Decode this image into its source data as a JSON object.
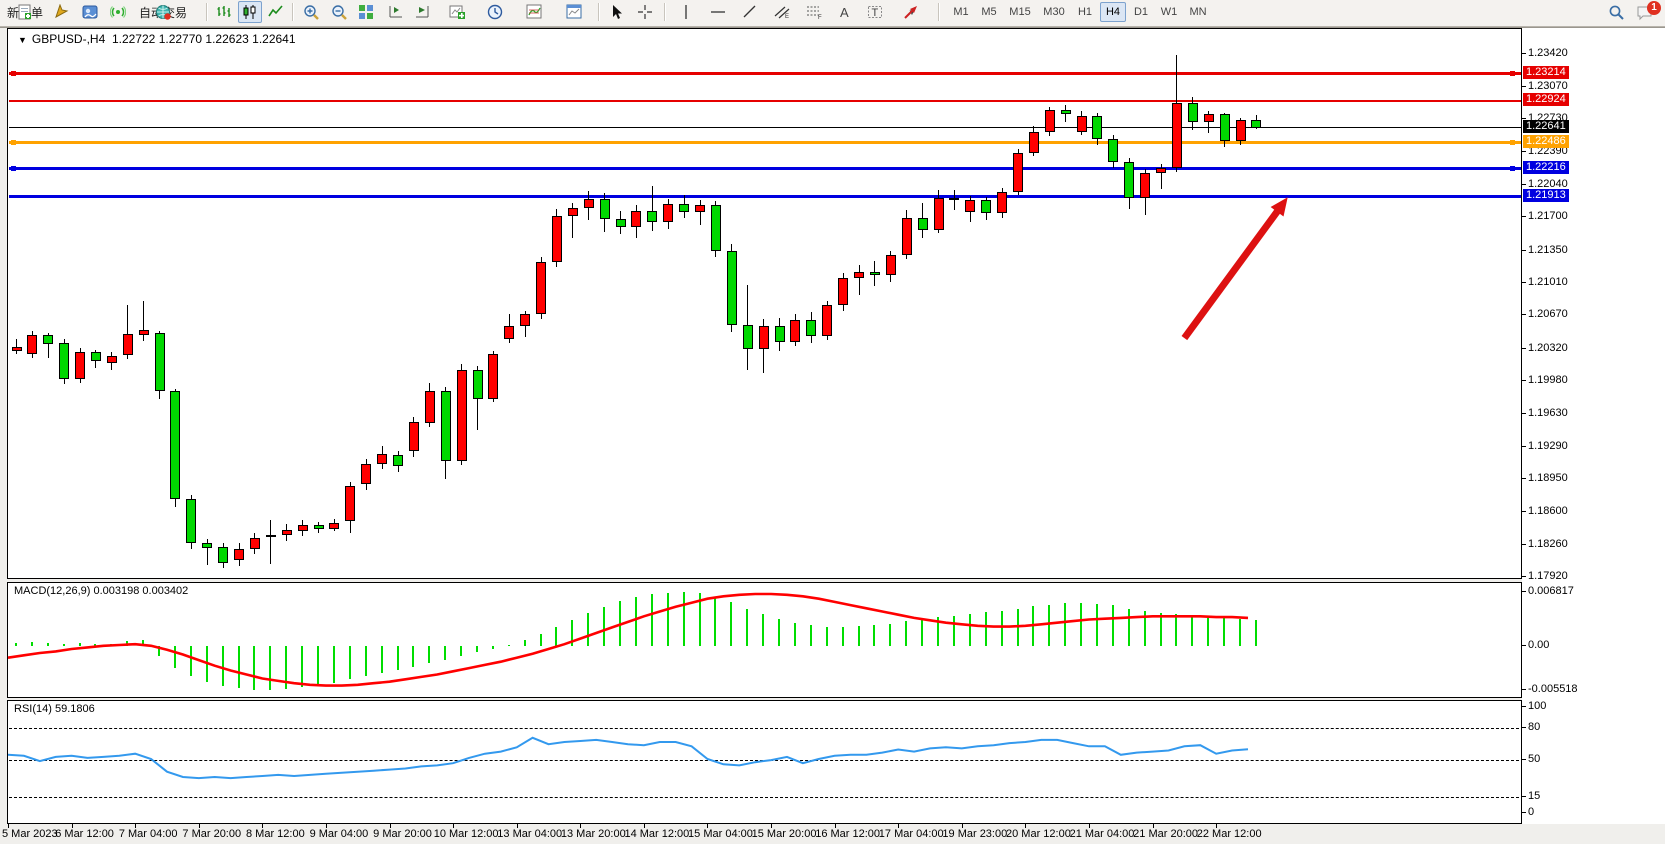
{
  "toolbar": {
    "new_order_label": "新订单",
    "auto_trading_label": "自动交易",
    "timeframes": [
      "M1",
      "M5",
      "M15",
      "M30",
      "H1",
      "H4",
      "D1",
      "W1",
      "MN"
    ],
    "active_timeframe": "H4",
    "notification_count": "1"
  },
  "chart_title": {
    "symbol_period": "GBPUSD-,H4",
    "open": "1.22722",
    "high": "1.22770",
    "low": "1.22623",
    "close": "1.22641"
  },
  "macd_panel": {
    "label": "MACD(12,26,9) 0.003198 0.003402",
    "axis_ticks": [
      {
        "value": 0.006817,
        "text": "0.006817"
      },
      {
        "value": 0.0,
        "text": "0.00"
      },
      {
        "value": -0.005518,
        "text": "-0.005518"
      }
    ]
  },
  "rsi_panel": {
    "label": "RSI(14) 59.1806",
    "axis_ticks": [
      {
        "value": 100,
        "text": "100"
      },
      {
        "value": 80,
        "text": "80"
      },
      {
        "value": 50,
        "text": "50"
      },
      {
        "value": 15,
        "text": "15"
      },
      {
        "value": 0,
        "text": "0"
      }
    ],
    "dashed_levels": [
      80,
      50,
      15
    ]
  },
  "chart_data": {
    "type": "candlestick",
    "symbol": "GBPUSD-",
    "period": "H4",
    "price_axis_ticks": [
      "1.23420",
      "1.23070",
      "1.22730",
      "1.22390",
      "1.22040",
      "1.21700",
      "1.21350",
      "1.21010",
      "1.20670",
      "1.20320",
      "1.19980",
      "1.19630",
      "1.19290",
      "1.18950",
      "1.18600",
      "1.18260",
      "1.17920"
    ],
    "ylim": [
      1.179,
      1.2352
    ],
    "grid": false,
    "up_color": "#ff0000",
    "down_color": "#00d800",
    "time_labels": [
      {
        "index": 0,
        "text": "5 Mar 2023"
      },
      {
        "index": 4,
        "text": "6 Mar 12:00"
      },
      {
        "index": 8,
        "text": "7 Mar 04:00"
      },
      {
        "index": 12,
        "text": "7 Mar 20:00"
      },
      {
        "index": 16,
        "text": "8 Mar 12:00"
      },
      {
        "index": 20,
        "text": "9 Mar 04:00"
      },
      {
        "index": 24,
        "text": "9 Mar 20:00"
      },
      {
        "index": 28,
        "text": "10 Mar 12:00"
      },
      {
        "index": 32,
        "text": "13 Mar 04:00"
      },
      {
        "index": 36,
        "text": "13 Mar 20:00"
      },
      {
        "index": 40,
        "text": "14 Mar 12:00"
      },
      {
        "index": 44,
        "text": "15 Mar 04:00"
      },
      {
        "index": 48,
        "text": "15 Mar 20:00"
      },
      {
        "index": 52,
        "text": "16 Mar 12:00"
      },
      {
        "index": 56,
        "text": "17 Mar 04:00"
      },
      {
        "index": 60,
        "text": "19 Mar 23:00"
      },
      {
        "index": 64,
        "text": "20 Mar 12:00"
      },
      {
        "index": 68,
        "text": "21 Mar 04:00"
      },
      {
        "index": 72,
        "text": "21 Mar 20:00"
      },
      {
        "index": 76,
        "text": "22 Mar 12:00"
      }
    ],
    "candles_ohlc": [
      [
        1.203,
        1.2042,
        1.2026,
        1.2034
      ],
      [
        1.2026,
        1.205,
        1.2022,
        1.2046
      ],
      [
        1.2046,
        1.2048,
        1.2022,
        1.2037
      ],
      [
        1.2038,
        1.2042,
        1.1995,
        1.2
      ],
      [
        1.2,
        1.2033,
        1.1996,
        1.2028
      ],
      [
        1.2028,
        1.2031,
        1.2012,
        1.2019
      ],
      [
        1.2017,
        1.2028,
        1.201,
        1.2024
      ],
      [
        1.2025,
        1.2078,
        1.2021,
        1.2047
      ],
      [
        1.2046,
        1.2082,
        1.204,
        1.2052
      ],
      [
        1.2048,
        1.2051,
        1.1979,
        1.1988
      ],
      [
        1.1988,
        1.199,
        1.1866,
        1.1874
      ],
      [
        1.1874,
        1.1878,
        1.1821,
        1.1828
      ],
      [
        1.1828,
        1.1832,
        1.1805,
        1.1823
      ],
      [
        1.1824,
        1.1828,
        1.1802,
        1.1807
      ],
      [
        1.181,
        1.1828,
        1.1804,
        1.1822
      ],
      [
        1.1821,
        1.1838,
        1.1816,
        1.1833
      ],
      [
        1.1834,
        1.1852,
        1.1806,
        1.1836
      ],
      [
        1.1836,
        1.1848,
        1.183,
        1.1841
      ],
      [
        1.184,
        1.1852,
        1.1835,
        1.1847
      ],
      [
        1.1847,
        1.185,
        1.1838,
        1.1843
      ],
      [
        1.1843,
        1.1853,
        1.184,
        1.1849
      ],
      [
        1.1851,
        1.1892,
        1.1838,
        1.1888
      ],
      [
        1.189,
        1.1916,
        1.1884,
        1.1911
      ],
      [
        1.1911,
        1.193,
        1.1906,
        1.1921
      ],
      [
        1.192,
        1.1924,
        1.1902,
        1.1909
      ],
      [
        1.1924,
        1.196,
        1.1918,
        1.1955
      ],
      [
        1.1954,
        1.1996,
        1.195,
        1.1988
      ],
      [
        1.1988,
        1.1992,
        1.1895,
        1.1914
      ],
      [
        1.1914,
        1.2016,
        1.191,
        1.201
      ],
      [
        1.201,
        1.2014,
        1.1947,
        1.1979
      ],
      [
        1.1979,
        1.203,
        1.1976,
        1.2026
      ],
      [
        1.2042,
        1.2068,
        1.2038,
        1.2056
      ],
      [
        1.2056,
        1.2072,
        1.2044,
        1.2068
      ],
      [
        1.2068,
        1.2128,
        1.2063,
        1.2123
      ],
      [
        1.2123,
        1.2179,
        1.2118,
        1.2171
      ],
      [
        1.2171,
        1.2185,
        1.2148,
        1.218
      ],
      [
        1.218,
        1.2198,
        1.2167,
        1.2189
      ],
      [
        1.2189,
        1.2195,
        1.2155,
        1.2168
      ],
      [
        1.2168,
        1.2177,
        1.2152,
        1.216
      ],
      [
        1.216,
        1.2183,
        1.2148,
        1.2177
      ],
      [
        1.2177,
        1.2203,
        1.2156,
        1.2165
      ],
      [
        1.2165,
        1.2189,
        1.2158,
        1.2184
      ],
      [
        1.2184,
        1.2193,
        1.2169,
        1.2175
      ],
      [
        1.2175,
        1.2188,
        1.2162,
        1.2183
      ],
      [
        1.2183,
        1.2187,
        1.2128,
        1.2135
      ],
      [
        1.2135,
        1.2142,
        1.2049,
        1.2057
      ],
      [
        1.2057,
        1.2099,
        1.201,
        1.2032
      ],
      [
        1.2032,
        1.2063,
        1.2006,
        1.2056
      ],
      [
        1.2056,
        1.2064,
        1.2029,
        1.2039
      ],
      [
        1.2039,
        1.2068,
        1.2035,
        1.2062
      ],
      [
        1.2062,
        1.207,
        1.2038,
        1.2045
      ],
      [
        1.2045,
        1.2082,
        1.2041,
        1.2078
      ],
      [
        1.2078,
        1.2111,
        1.2072,
        1.2106
      ],
      [
        1.2106,
        1.212,
        1.2088,
        1.2113
      ],
      [
        1.2113,
        1.2124,
        1.2098,
        1.2109
      ],
      [
        1.2109,
        1.2135,
        1.2102,
        1.213
      ],
      [
        1.213,
        1.2178,
        1.2126,
        1.2169
      ],
      [
        1.2169,
        1.2185,
        1.2148,
        1.2157
      ],
      [
        1.2157,
        1.2199,
        1.2153,
        1.219
      ],
      [
        1.219,
        1.2199,
        1.2178,
        1.2188
      ],
      [
        1.2175,
        1.2192,
        1.2165,
        1.2188
      ],
      [
        1.2188,
        1.2191,
        1.2167,
        1.2174
      ],
      [
        1.2174,
        1.2201,
        1.2169,
        1.2197
      ],
      [
        1.2197,
        1.2242,
        1.2193,
        1.2238
      ],
      [
        1.2238,
        1.2266,
        1.2234,
        1.226
      ],
      [
        1.226,
        1.2286,
        1.2255,
        1.2283
      ],
      [
        1.2283,
        1.2288,
        1.227,
        1.2278
      ],
      [
        1.226,
        1.2282,
        1.2256,
        1.2276
      ],
      [
        1.2276,
        1.228,
        1.2246,
        1.2252
      ],
      [
        1.2252,
        1.2256,
        1.2222,
        1.2228
      ],
      [
        1.2228,
        1.2232,
        1.2179,
        1.219
      ],
      [
        1.219,
        1.2221,
        1.2172,
        1.2217
      ],
      [
        1.2217,
        1.2226,
        1.22,
        1.2222
      ],
      [
        1.2222,
        1.234,
        1.2218,
        1.229
      ],
      [
        1.229,
        1.2296,
        1.2262,
        1.227
      ],
      [
        1.227,
        1.2282,
        1.2258,
        1.2278
      ],
      [
        1.2278,
        1.228,
        1.2244,
        1.225
      ],
      [
        1.225,
        1.2274,
        1.2246,
        1.22722
      ],
      [
        1.22722,
        1.2277,
        1.22623,
        1.22641
      ]
    ],
    "macd": {
      "histogram": [
        0.0004,
        0.0005,
        0.0004,
        0.0002,
        0.0004,
        0.0003,
        0.0003,
        0.0006,
        0.0007,
        -0.0012,
        -0.0028,
        -0.0038,
        -0.0045,
        -0.005,
        -0.0053,
        -0.0055,
        -0.0055,
        -0.0054,
        -0.0052,
        -0.0049,
        -0.0046,
        -0.0042,
        -0.0038,
        -0.0034,
        -0.003,
        -0.0026,
        -0.0021,
        -0.0017,
        -0.0012,
        -0.0008,
        -0.0004,
        0.0001,
        0.0007,
        0.0015,
        0.0024,
        0.0033,
        0.0041,
        0.0049,
        0.0056,
        0.0061,
        0.0065,
        0.0067,
        0.0068,
        0.0066,
        0.0062,
        0.0055,
        0.0047,
        0.004,
        0.0034,
        0.0029,
        0.0026,
        0.0024,
        0.0024,
        0.0025,
        0.0026,
        0.0028,
        0.0031,
        0.0033,
        0.0036,
        0.0038,
        0.004,
        0.0042,
        0.0044,
        0.0047,
        0.005,
        0.0052,
        0.0054,
        0.0054,
        0.0053,
        0.0051,
        0.0047,
        0.0044,
        0.0041,
        0.004,
        0.0039,
        0.0038,
        0.0036,
        0.0034,
        0.0032
      ],
      "signal": [
        -0.0016,
        -0.0013,
        -0.001,
        -0.0008,
        -0.0005,
        -0.0003,
        -0.0001,
        0.0,
        0.0001,
        -0.0001,
        -0.0006,
        -0.0012,
        -0.0019,
        -0.0026,
        -0.0032,
        -0.0037,
        -0.0042,
        -0.0045,
        -0.0048,
        -0.005,
        -0.0051,
        -0.0051,
        -0.005,
        -0.0048,
        -0.0046,
        -0.0043,
        -0.004,
        -0.0037,
        -0.0033,
        -0.0029,
        -0.0025,
        -0.0021,
        -0.0016,
        -0.0011,
        -0.0005,
        0.0001,
        0.0008,
        0.0015,
        0.0022,
        0.0029,
        0.0036,
        0.0042,
        0.0048,
        0.0053,
        0.0058,
        0.0061,
        0.0063,
        0.0064,
        0.0064,
        0.0063,
        0.0061,
        0.0058,
        0.0054,
        0.005,
        0.0046,
        0.0042,
        0.0038,
        0.0034,
        0.0031,
        0.0028,
        0.0026,
        0.0024,
        0.0023,
        0.0023,
        0.0024,
        0.0026,
        0.0028,
        0.003,
        0.0032,
        0.0033,
        0.0034,
        0.0035,
        0.0036,
        0.0036,
        0.0036,
        0.0036,
        0.0035,
        0.0035,
        0.0034
      ],
      "ylim": [
        -0.0064,
        0.0079
      ],
      "histogram_color": "#00dd00",
      "signal_color": "#ff0000"
    },
    "rsi": {
      "values": [
        54,
        53,
        48,
        52,
        53,
        51,
        52,
        53,
        55,
        50,
        38,
        33,
        32,
        33,
        32,
        33,
        34,
        35,
        34,
        35,
        36,
        37,
        38,
        39,
        40,
        41,
        43,
        44,
        46,
        51,
        55,
        57,
        61,
        70,
        64,
        66,
        67,
        68,
        66,
        64,
        63,
        66,
        66,
        62,
        50,
        45,
        44,
        47,
        49,
        52,
        46,
        50,
        53,
        54,
        54,
        56,
        59,
        57,
        60,
        61,
        60,
        62,
        63,
        65,
        66,
        68,
        68,
        65,
        62,
        62,
        54,
        56,
        57,
        58,
        62,
        63,
        55,
        58,
        59.18
      ],
      "line_color": "#3399ee"
    },
    "horizontal_lines": [
      {
        "price": 1.23214,
        "tag": "1.23214",
        "color": "#e60000",
        "thickness": 3,
        "handles": true
      },
      {
        "price": 1.22924,
        "tag": "1.22924",
        "color": "#e60000",
        "thickness": 2,
        "handles": false
      },
      {
        "price": 1.22641,
        "tag": "1.22641",
        "color": "#000000",
        "thickness": 1,
        "handles": false
      },
      {
        "price": 1.22486,
        "tag": "1.22486",
        "color": "#ffa200",
        "thickness": 3,
        "handles": true
      },
      {
        "price": 1.22216,
        "tag": "1.22216",
        "color": "#0000e0",
        "thickness": 3,
        "handles": true
      },
      {
        "price": 1.21913,
        "tag": "1.21913",
        "color": "#0000e0",
        "thickness": 3,
        "handles": false
      }
    ],
    "annotations": [
      {
        "type": "arrow",
        "x1_index": 74.0,
        "y1_price": 1.2042,
        "x2_index": 80.5,
        "y2_price": 1.219,
        "color": "#dd1111"
      }
    ]
  }
}
